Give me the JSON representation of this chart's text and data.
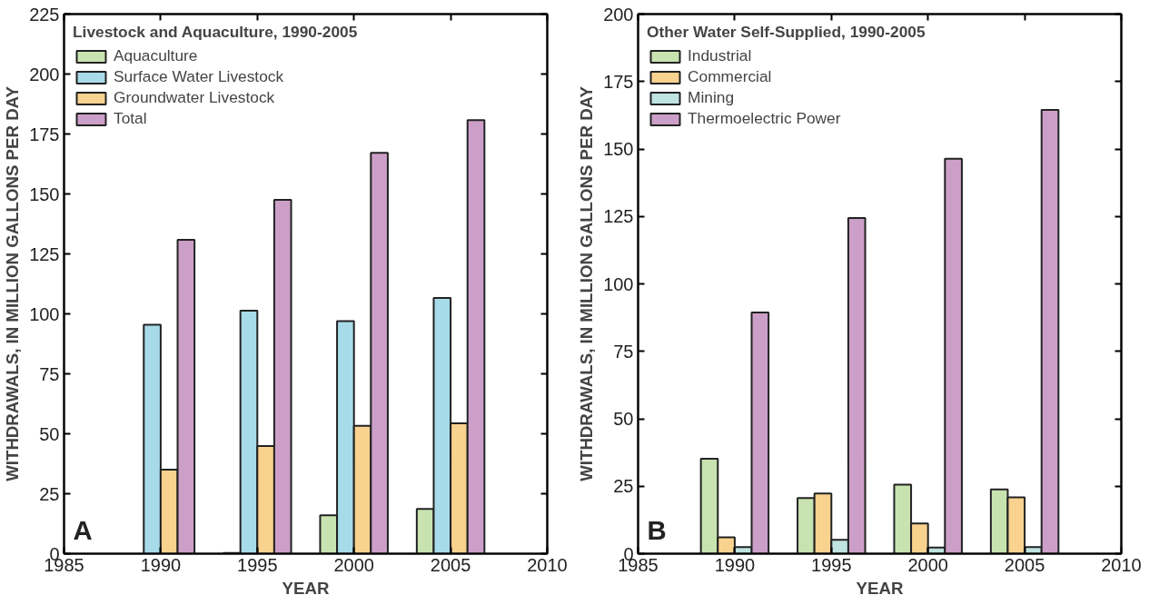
{
  "chart_data": [
    {
      "type": "bar",
      "legend_title": "Livestock and Aquaculture, 1990-2005",
      "xlabel": "YEAR",
      "ylabel": "WITHDRAWALS, IN MILLION GALLONS PER DAY",
      "annotations": [
        "A"
      ],
      "x": [
        1990,
        1995,
        2000,
        2005
      ],
      "xlim": [
        1985,
        2010
      ],
      "xticks": [
        1985,
        1990,
        1995,
        2000,
        2005,
        2010
      ],
      "ylim": [
        0,
        225
      ],
      "yticks": [
        0,
        25,
        50,
        75,
        100,
        125,
        150,
        175,
        200,
        225
      ],
      "grid": false,
      "legend": "top left",
      "series": [
        {
          "name": "Aquaculture",
          "color": "#c8e3b0",
          "values": [
            null,
            0.3,
            16,
            18.7
          ]
        },
        {
          "name": "Surface Water Livestock",
          "color": "#a8dbea",
          "values": [
            95.5,
            101.3,
            97,
            106.6
          ]
        },
        {
          "name": "Groundwater Livestock",
          "color": "#fad28f",
          "values": [
            35,
            44.9,
            53.3,
            54.4
          ]
        },
        {
          "name": "Total",
          "color": "#cc9fc8",
          "values": [
            130.9,
            147.5,
            167.1,
            180.8
          ]
        }
      ]
    },
    {
      "type": "bar",
      "legend_title": "Other Water Self-Supplied, 1990-2005",
      "xlabel": "YEAR",
      "ylabel": "WITHDRAWALS, IN MILLION GALLONS PER DAY",
      "annotations": [
        "B"
      ],
      "x": [
        1990,
        1995,
        2000,
        2005
      ],
      "xlim": [
        1985,
        2010
      ],
      "xticks": [
        1985,
        1990,
        1995,
        2000,
        2005,
        2010
      ],
      "ylim": [
        0,
        200
      ],
      "yticks": [
        0,
        25,
        50,
        75,
        100,
        125,
        150,
        175,
        200
      ],
      "grid": false,
      "legend": "top left",
      "series": [
        {
          "name": "Industrial",
          "color": "#c8e3b0",
          "values": [
            35.2,
            20.6,
            25.6,
            23.8
          ]
        },
        {
          "name": "Commercial",
          "color": "#fad28f",
          "values": [
            6.1,
            22.3,
            11.2,
            20.9
          ]
        },
        {
          "name": "Mining",
          "color": "#bfe3e1",
          "values": [
            2.4,
            5.1,
            2.3,
            2.4
          ]
        },
        {
          "name": "Thermoelectric Power",
          "color": "#cc9fc8",
          "values": [
            89.4,
            124.4,
            146.4,
            164.5
          ]
        }
      ]
    }
  ]
}
